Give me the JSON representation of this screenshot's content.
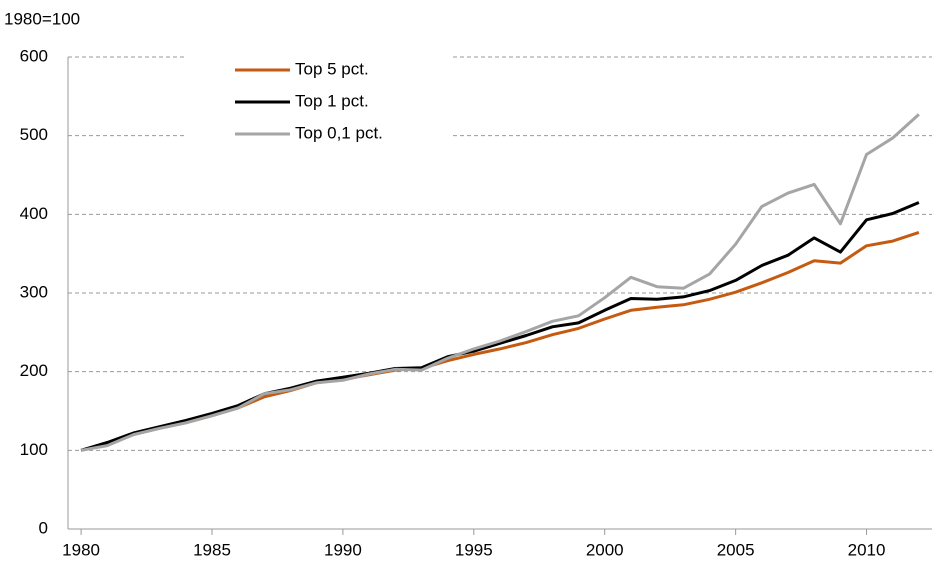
{
  "chart_data": {
    "type": "line",
    "y_label": "1980=100",
    "x": [
      1980,
      1981,
      1982,
      1983,
      1984,
      1985,
      1986,
      1987,
      1988,
      1989,
      1990,
      1991,
      1992,
      1993,
      1994,
      1995,
      1996,
      1997,
      1998,
      1999,
      2000,
      2001,
      2002,
      2003,
      2004,
      2005,
      2006,
      2007,
      2008,
      2009,
      2010,
      2011,
      2012
    ],
    "series": [
      {
        "name": "Top 5 pct.",
        "color": "#c55a11",
        "values": [
          100,
          108,
          120,
          128,
          135,
          144,
          154,
          168,
          176,
          186,
          190,
          196,
          202,
          204,
          214,
          222,
          229,
          237,
          247,
          255,
          267,
          278,
          282,
          285,
          292,
          301,
          313,
          326,
          341,
          338,
          360,
          366,
          377
        ]
      },
      {
        "name": "Top 1 pct.",
        "color": "#000000",
        "values": [
          100,
          110,
          122,
          130,
          138,
          147,
          157,
          172,
          179,
          188,
          193,
          198,
          204,
          205,
          219,
          226,
          236,
          246,
          257,
          262,
          278,
          293,
          292,
          295,
          303,
          316,
          335,
          348,
          370,
          352,
          393,
          401,
          415
        ]
      },
      {
        "name": "Top 0,1 pct.",
        "color": "#a5a5a5",
        "values": [
          100,
          106,
          120,
          128,
          135,
          144,
          154,
          172,
          177,
          186,
          189,
          197,
          203,
          202,
          217,
          229,
          239,
          251,
          264,
          271,
          294,
          320,
          308,
          306,
          324,
          362,
          410,
          427,
          438,
          388,
          476,
          497,
          527
        ]
      }
    ],
    "xlim": [
      1979.5,
      2012.5
    ],
    "xticks": [
      1980,
      1985,
      1990,
      1995,
      2000,
      2005,
      2010
    ],
    "ylim": [
      0,
      600
    ],
    "yticks": [
      0,
      100,
      200,
      300,
      400,
      500,
      600
    ],
    "grid": true,
    "legend": "top-left"
  }
}
